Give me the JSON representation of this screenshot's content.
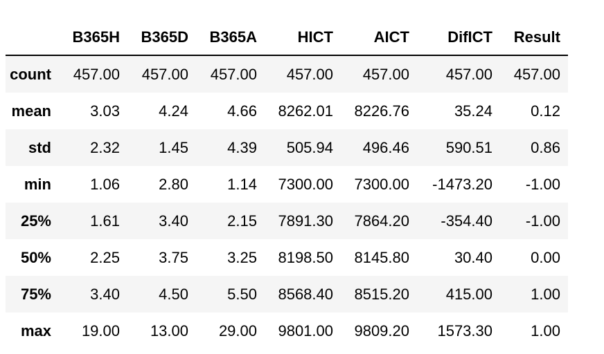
{
  "table": {
    "index_header": "",
    "columns": [
      "B365H",
      "B365D",
      "B365A",
      "HICT",
      "AICT",
      "DifICT",
      "Result"
    ],
    "rows": [
      {
        "label": "count",
        "values": [
          "457.00",
          "457.00",
          "457.00",
          "457.00",
          "457.00",
          "457.00",
          "457.00"
        ]
      },
      {
        "label": "mean",
        "values": [
          "3.03",
          "4.24",
          "4.66",
          "8262.01",
          "8226.76",
          "35.24",
          "0.12"
        ]
      },
      {
        "label": "std",
        "values": [
          "2.32",
          "1.45",
          "4.39",
          "505.94",
          "496.46",
          "590.51",
          "0.86"
        ]
      },
      {
        "label": "min",
        "values": [
          "1.06",
          "2.80",
          "1.14",
          "7300.00",
          "7300.00",
          "-1473.20",
          "-1.00"
        ]
      },
      {
        "label": "25%",
        "values": [
          "1.61",
          "3.40",
          "2.15",
          "7891.30",
          "7864.20",
          "-354.40",
          "-1.00"
        ]
      },
      {
        "label": "50%",
        "values": [
          "2.25",
          "3.75",
          "3.25",
          "8198.50",
          "8145.80",
          "30.40",
          "0.00"
        ]
      },
      {
        "label": "75%",
        "values": [
          "3.40",
          "4.50",
          "5.50",
          "8568.40",
          "8515.20",
          "415.00",
          "1.00"
        ]
      },
      {
        "label": "max",
        "values": [
          "19.00",
          "13.00",
          "29.00",
          "9801.00",
          "9809.20",
          "1573.30",
          "1.00"
        ]
      }
    ]
  }
}
